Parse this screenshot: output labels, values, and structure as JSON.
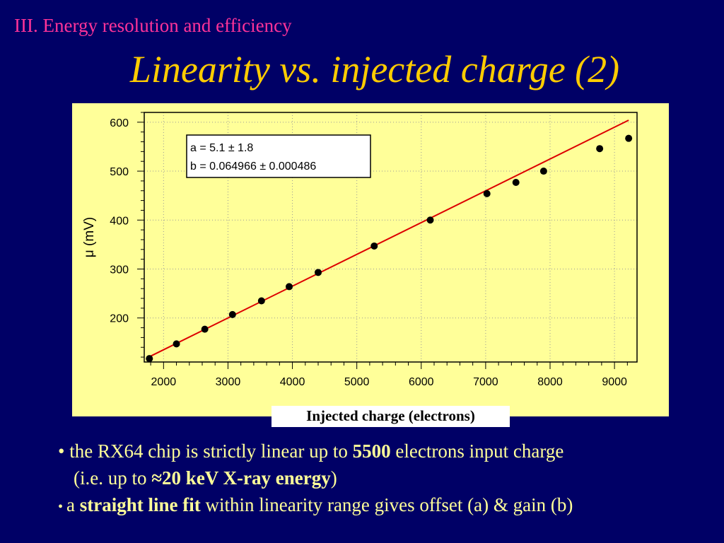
{
  "header": {
    "section": "III. Energy resolution and efficiency",
    "title": "Linearity vs. injected charge (2)"
  },
  "fit_box": {
    "line_a": "a  =  5.1 ± 1.8",
    "line_b": "b  =  0.064966 ± 0.000486"
  },
  "bullets": {
    "b1_pre": "• the RX64 chip is strictly linear up to ",
    "b1_bold": "5500",
    "b1_post": " electrons input charge",
    "b1_line2_pre": "(i.e. up to ",
    "b1_line2_bold": "≈20 keV X-ray energy",
    "b1_line2_post": ")",
    "b2_dot": "• ",
    "b2_pre": "a ",
    "b2_bold": "straight line fit",
    "b2_post": " within linearity range gives offset (a) & gain (b)"
  },
  "colors": {
    "background": "#000066",
    "section": "#ff3399",
    "title": "#ffcc00",
    "panel": "#ffff99",
    "fit_line": "#dd0000",
    "points": "#000000"
  },
  "chart_data": {
    "type": "scatter",
    "xlabel": "Injected charge (electrons)",
    "ylabel": "μ (mV)",
    "xlim": [
      1700,
      9350
    ],
    "ylim": [
      110,
      620
    ],
    "x_ticks": [
      2000,
      3000,
      4000,
      5000,
      6000,
      7000,
      8000,
      9000
    ],
    "y_ticks": [
      200,
      300,
      400,
      500,
      600
    ],
    "grid": true,
    "points": [
      {
        "x": 1780,
        "y": 117
      },
      {
        "x": 2200,
        "y": 147
      },
      {
        "x": 2640,
        "y": 177
      },
      {
        "x": 3070,
        "y": 207
      },
      {
        "x": 3520,
        "y": 235
      },
      {
        "x": 3950,
        "y": 264
      },
      {
        "x": 4400,
        "y": 293
      },
      {
        "x": 5270,
        "y": 347
      },
      {
        "x": 6140,
        "y": 400
      },
      {
        "x": 7020,
        "y": 454
      },
      {
        "x": 7470,
        "y": 477
      },
      {
        "x": 7900,
        "y": 500
      },
      {
        "x": 8770,
        "y": 546
      },
      {
        "x": 9220,
        "y": 567
      }
    ],
    "fit": {
      "a": 5.1,
      "b": 0.064966,
      "x_range": [
        1780,
        9220
      ]
    }
  }
}
